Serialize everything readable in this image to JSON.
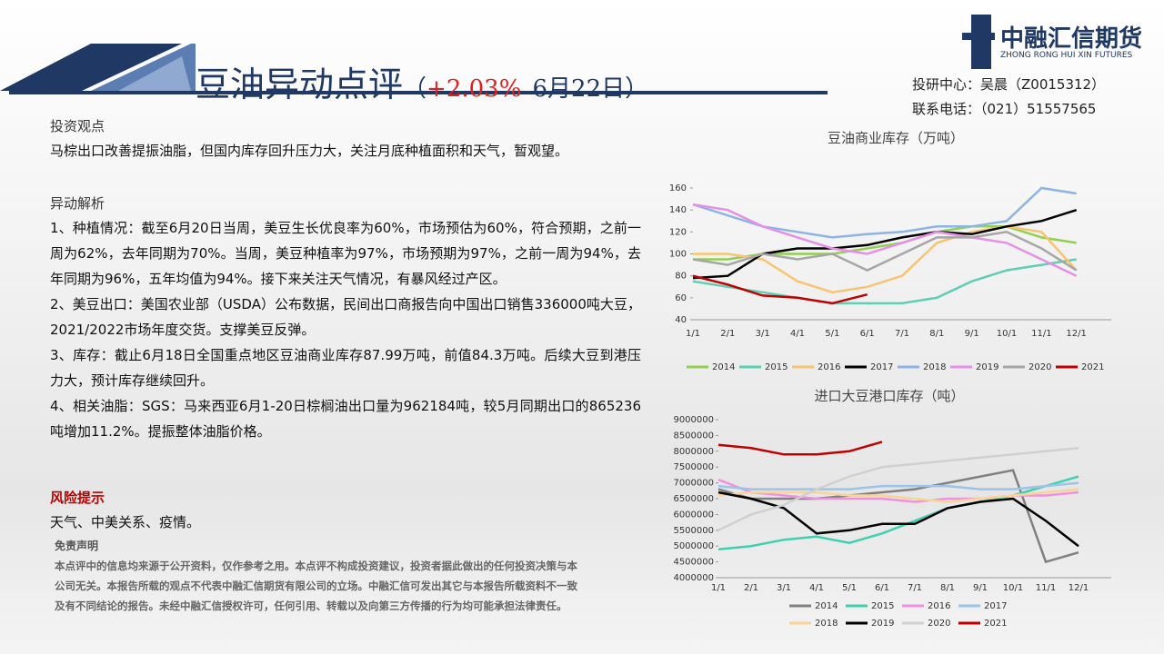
{
  "header": {
    "title": "豆油异动点评",
    "open": "（",
    "change": "+2.03%",
    "date": "6月22日",
    "close": "）"
  },
  "logo": {
    "name": "中融汇信期货",
    "english": "ZHONG RONG HUI XIN FUTURES"
  },
  "contact": [
    "投研中心：吴晨（Z0015312）",
    "联系电话：（021）51557565"
  ],
  "sections": [
    {
      "heading": "投资观点",
      "paragraphs": [
        "马棕出口改善提振油脂，但国内库存回升压力大，关注月底种植面积和天气，暂观望。"
      ]
    },
    {
      "heading": "异动解析",
      "paragraphs": [
        "1、种植情况：截至6月20日当周，美豆生长优良率为60%，市场预估为60%，符合预期，之前一周为62%，去年同期为70%。当周，美豆种植率为97%，市场预期为97%，之前一周为94%，去年同期为96%，五年均值为94%。接下来关注天气情况，有暴风经过产区。",
        "2、美豆出口：美国农业部（USDA）公布数据，民间出口商报告向中国出口销售336000吨大豆，2021/2022市场年度交货。支撑美豆反弹。",
        "3、库存：截止6月18日全国重点地区豆油商业库存87.99万吨，前值84.3万吨。后续大豆到港压力大，预计库存继续回升。",
        "4、相关油脂：SGS：马来西亚6月1-20日棕榈油出口量为962184吨，较5月同期出口的865236吨增加11.2%。提振整体油脂价格。"
      ]
    },
    {
      "heading": "风险提示",
      "paragraphs": [
        "天气、中美关系、疫情。"
      ]
    }
  ],
  "disclaimer": {
    "heading": "免责声明",
    "text": "本点评中的信息均来源于公开资料，仅作参考之用。本点评不构成投资建议，投资者据此做出的任何投资决策与本公司无关。本报告所载的观点不代表中融汇信期货有限公司的立场。中融汇信可发出其它与本报告所载资料不一致及有不同结论的报告。未经中融汇信授权许可，任何引用、转载以及向第三方传播的行为均可能承担法律责任。"
  },
  "chart_data": [
    {
      "type": "line",
      "title": "豆油商业库存（万吨）",
      "categories": [
        "1/1",
        "2/1",
        "3/1",
        "4/1",
        "5/1",
        "6/1",
        "7/1",
        "8/1",
        "9/1",
        "10/1",
        "11/1",
        "12/1"
      ],
      "ylim": [
        40,
        160
      ],
      "yticks": [
        40,
        60,
        80,
        100,
        120,
        140,
        160
      ],
      "series": [
        {
          "name": "2014",
          "color": "#92d050",
          "values": [
            95,
            95,
            100,
            100,
            100,
            105,
            110,
            120,
            125,
            125,
            115,
            110
          ]
        },
        {
          "name": "2015",
          "color": "#5fcfb4",
          "values": [
            75,
            70,
            65,
            60,
            55,
            55,
            55,
            60,
            75,
            85,
            90,
            95
          ]
        },
        {
          "name": "2016",
          "color": "#f8c471",
          "values": [
            100,
            100,
            95,
            75,
            65,
            70,
            80,
            110,
            120,
            125,
            120,
            85
          ]
        },
        {
          "name": "2017",
          "color": "#000000",
          "values": [
            78,
            80,
            100,
            105,
            105,
            108,
            115,
            120,
            118,
            125,
            130,
            140
          ]
        },
        {
          "name": "2018",
          "color": "#8db4e2",
          "values": [
            145,
            135,
            125,
            120,
            115,
            118,
            120,
            125,
            125,
            130,
            160,
            155
          ]
        },
        {
          "name": "2019",
          "color": "#e68fe6",
          "values": [
            145,
            140,
            125,
            115,
            105,
            100,
            110,
            120,
            115,
            110,
            95,
            80
          ]
        },
        {
          "name": "2020",
          "color": "#a6a6a6",
          "values": [
            95,
            90,
            100,
            95,
            100,
            85,
            100,
            115,
            115,
            120,
            105,
            85
          ]
        },
        {
          "name": "2021",
          "color": "#c00000",
          "values": [
            80,
            72,
            62,
            60,
            55,
            63,
            null,
            null,
            null,
            null,
            null,
            null
          ]
        }
      ]
    },
    {
      "type": "line",
      "title": "进口大豆港口库存（吨）",
      "categories": [
        "1/1",
        "2/1",
        "3/1",
        "4/1",
        "5/1",
        "6/1",
        "7/1",
        "8/1",
        "9/1",
        "10/1",
        "11/1",
        "12/1"
      ],
      "ylim": [
        4000000,
        9000000
      ],
      "yticks": [
        4000000,
        4500000,
        5000000,
        5500000,
        6000000,
        6500000,
        7000000,
        7500000,
        8000000,
        8500000,
        9000000
      ],
      "series": [
        {
          "name": "2014",
          "color": "#808080",
          "values": [
            6800000,
            6500000,
            6500000,
            6500000,
            6600000,
            6700000,
            6800000,
            7000000,
            7200000,
            7400000,
            4500000,
            4800000
          ]
        },
        {
          "name": "2015",
          "color": "#40d0b0",
          "values": [
            4900000,
            5000000,
            5200000,
            5300000,
            5100000,
            5400000,
            5800000,
            6200000,
            6400000,
            6600000,
            6900000,
            7200000
          ]
        },
        {
          "name": "2016",
          "color": "#f090e0",
          "values": [
            7100000,
            6700000,
            6600000,
            6500000,
            6500000,
            6500000,
            6400000,
            6500000,
            6500000,
            6600000,
            6600000,
            6700000
          ]
        },
        {
          "name": "2017",
          "color": "#9dc3e6",
          "values": [
            6900000,
            6800000,
            6800000,
            6800000,
            6800000,
            6900000,
            6900000,
            6900000,
            6800000,
            6800000,
            6900000,
            7000000
          ]
        },
        {
          "name": "2018",
          "color": "#f8d49a",
          "values": [
            6600000,
            6700000,
            6700000,
            6700000,
            6600000,
            6600000,
            6500000,
            6400000,
            6500000,
            6600000,
            6700000,
            6800000
          ]
        },
        {
          "name": "2019",
          "color": "#000000",
          "values": [
            6700000,
            6500000,
            6200000,
            5400000,
            5500000,
            5700000,
            5700000,
            6200000,
            6400000,
            6500000,
            5800000,
            5000000
          ]
        },
        {
          "name": "2020",
          "color": "#d0d0d0",
          "values": [
            5500000,
            6000000,
            6300000,
            6800000,
            7200000,
            7500000,
            7600000,
            7700000,
            7800000,
            7900000,
            8000000,
            8100000
          ]
        },
        {
          "name": "2021",
          "color": "#c00000",
          "values": [
            8200000,
            8100000,
            7900000,
            7900000,
            8000000,
            8300000,
            null,
            null,
            null,
            null,
            null,
            null
          ]
        }
      ]
    }
  ]
}
